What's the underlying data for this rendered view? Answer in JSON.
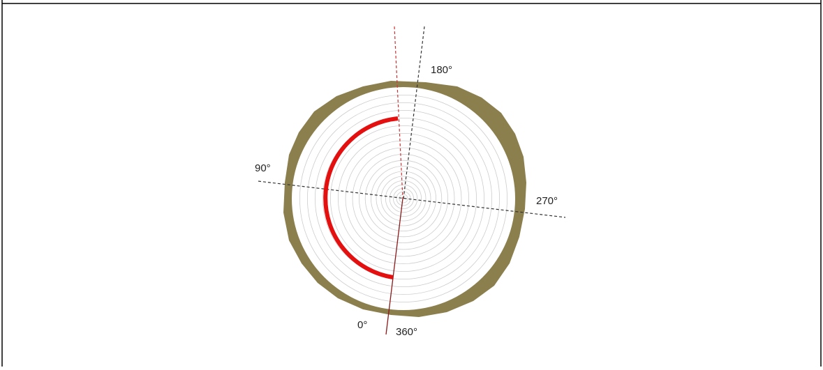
{
  "labels": {
    "top": "180°",
    "left": "90°",
    "right": "270°",
    "bottom_start": "0°",
    "bottom_end": "360°"
  }
}
